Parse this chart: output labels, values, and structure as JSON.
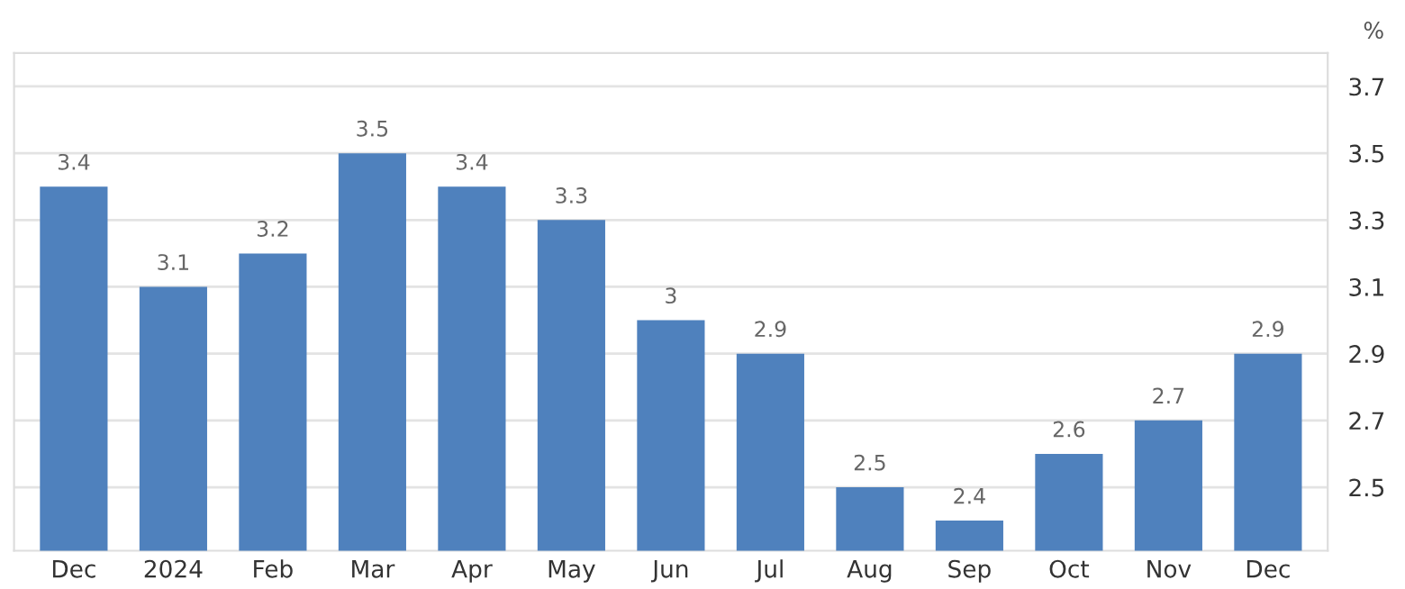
{
  "chart_data": {
    "type": "bar",
    "ylabel": "%",
    "categories": [
      "Dec",
      "2024",
      "Feb",
      "Mar",
      "Apr",
      "May",
      "Jun",
      "Jul",
      "Aug",
      "Sep",
      "Oct",
      "Nov",
      "Dec"
    ],
    "values": [
      3.4,
      3.1,
      3.2,
      3.5,
      3.4,
      3.3,
      3.0,
      2.9,
      2.5,
      2.4,
      2.6,
      2.7,
      2.9
    ],
    "value_labels": [
      "3.4",
      "3.1",
      "3.2",
      "3.5",
      "3.4",
      "3.3",
      "3",
      "2.9",
      "2.5",
      "2.4",
      "2.6",
      "2.7",
      "2.9"
    ],
    "color": "#4f81bd",
    "ylim": [
      2.31,
      3.8
    ],
    "yticks": [
      2.5,
      2.7,
      2.9,
      3.1,
      3.3,
      3.5,
      3.7
    ],
    "grid": "y",
    "legend": false
  }
}
